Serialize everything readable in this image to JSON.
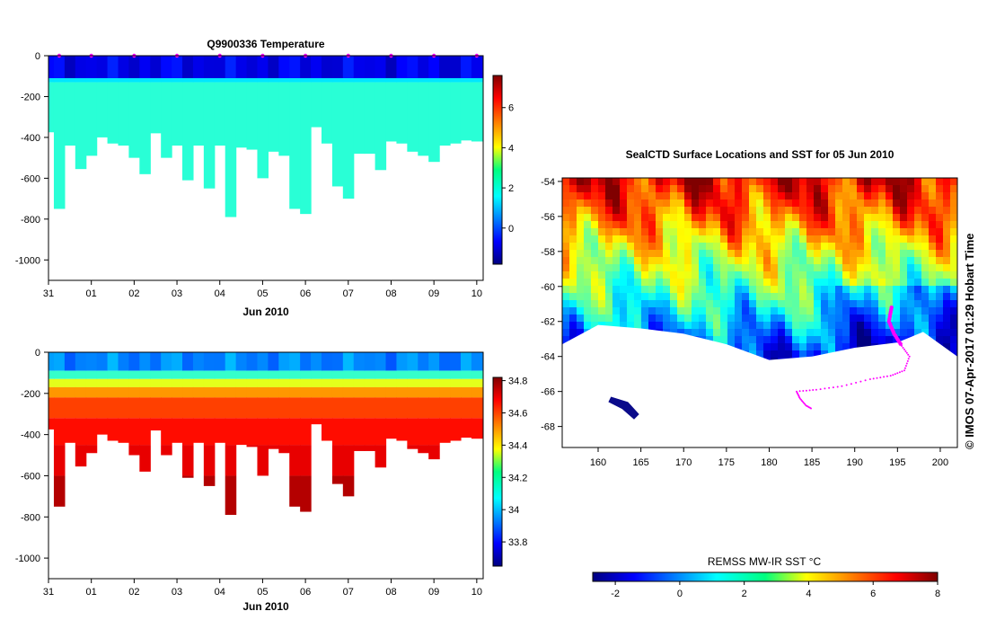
{
  "colors": {
    "white": "#ffffff",
    "track": "#ff00ff",
    "land": "#ffffff",
    "axis": "#000000"
  },
  "credit": "© IMOS 07-Apr-2017 01:29 Hobart Time",
  "chart_data": [
    {
      "type": "heatmap",
      "id": "temperature-section",
      "title": "Q9900336  Temperature",
      "xlabel": "Jun 2010",
      "x_ticks": [
        "31",
        "01",
        "02",
        "03",
        "04",
        "05",
        "06",
        "07",
        "08",
        "09",
        "10"
      ],
      "xlim": [
        0,
        10.15
      ],
      "ylim": [
        -1100,
        0
      ],
      "y_ticks": [
        0,
        -200,
        -400,
        -600,
        -800,
        -1000
      ],
      "y_tick_labels": [
        "0",
        "-200",
        "-400",
        "-600",
        "-800",
        "-1000"
      ],
      "colorbar": {
        "range": [
          -1.8,
          7.6
        ],
        "ticks": [
          0,
          2,
          4,
          6
        ],
        "tick_labels": [
          "0",
          "2",
          "4",
          "6"
        ],
        "colormap": "jet"
      },
      "surface_markers_at_day": [
        0.25,
        1,
        2,
        3,
        4,
        5,
        6,
        7,
        8,
        9,
        10
      ],
      "profile_bottom_depths": [
        375,
        750,
        440,
        555,
        490,
        400,
        430,
        440,
        500,
        580,
        380,
        500,
        440,
        610,
        440,
        650,
        440,
        790,
        450,
        460,
        600,
        470,
        490,
        750,
        775,
        350,
        430,
        640,
        700,
        480,
        480,
        560,
        420,
        430,
        470,
        490,
        520,
        440,
        430,
        415,
        420
      ],
      "layers": [
        {
          "top": 0,
          "bottom": 110,
          "value": -0.8
        },
        {
          "top": 110,
          "bottom": 130,
          "value": 1.5
        },
        {
          "top": 130,
          "bottom": 2000,
          "value": 2.1
        }
      ]
    },
    {
      "type": "heatmap",
      "id": "salinity-section",
      "xlabel": "Jun 2010",
      "x_ticks": [
        "31",
        "01",
        "02",
        "03",
        "04",
        "05",
        "06",
        "07",
        "08",
        "09",
        "10"
      ],
      "xlim": [
        0,
        10.15
      ],
      "ylim": [
        -1100,
        0
      ],
      "y_ticks": [
        0,
        -200,
        -400,
        -600,
        -800,
        -1000
      ],
      "y_tick_labels": [
        "0",
        "-200",
        "-400",
        "-600",
        "-800",
        "-1000"
      ],
      "colorbar": {
        "range": [
          33.65,
          34.82
        ],
        "ticks": [
          33.8,
          34,
          34.2,
          34.4,
          34.6,
          34.8
        ],
        "tick_labels": [
          "33.8",
          "34",
          "34.2",
          "34.4",
          "34.6",
          "34.8"
        ],
        "colormap": "jet"
      },
      "profile_bottom_depths": [
        375,
        750,
        440,
        555,
        490,
        400,
        430,
        440,
        500,
        580,
        380,
        500,
        440,
        610,
        440,
        650,
        440,
        790,
        450,
        460,
        600,
        470,
        490,
        750,
        775,
        350,
        430,
        640,
        700,
        480,
        480,
        560,
        420,
        430,
        470,
        490,
        520,
        440,
        430,
        415,
        420
      ],
      "layers": [
        {
          "top": 0,
          "bottom": 90,
          "value": 33.95
        },
        {
          "top": 90,
          "bottom": 130,
          "value": 34.15
        },
        {
          "top": 130,
          "bottom": 170,
          "value": 34.35
        },
        {
          "top": 170,
          "bottom": 220,
          "value": 34.5
        },
        {
          "top": 220,
          "bottom": 320,
          "value": 34.6
        },
        {
          "top": 320,
          "bottom": 450,
          "value": 34.66
        },
        {
          "top": 450,
          "bottom": 600,
          "value": 34.7
        },
        {
          "top": 600,
          "bottom": 2000,
          "value": 34.76
        }
      ]
    },
    {
      "type": "heatmap",
      "id": "sst-map",
      "title": "SealCTD Surface Locations and SST for 05 Jun 2010",
      "x_ticks": [
        160,
        165,
        170,
        175,
        180,
        185,
        190,
        195,
        200
      ],
      "x_tick_labels": [
        "160",
        "165",
        "170",
        "175",
        "180",
        "185",
        "190",
        "195",
        "200"
      ],
      "xlim": [
        155.8,
        202
      ],
      "y_ticks": [
        -54,
        -56,
        -58,
        -60,
        -62,
        -64,
        -66,
        -68
      ],
      "y_tick_labels": [
        "-54",
        "-56",
        "-58",
        "-60",
        "-62",
        "-64",
        "-66",
        "-68"
      ],
      "ylim": [
        -69.2,
        -53.8
      ],
      "colorbar": {
        "title": "REMSS MW-IR SST °C",
        "range": [
          -2.7,
          8
        ],
        "ticks": [
          -2,
          0,
          2,
          4,
          6,
          8
        ],
        "tick_labels": [
          "-2",
          "0",
          "2",
          "4",
          "6",
          "8"
        ],
        "colormap": "jet"
      },
      "sst_zonal_profile": [
        {
          "lat": -54,
          "value": 6.8
        },
        {
          "lat": -56,
          "value": 5.5
        },
        {
          "lat": -58,
          "value": 3.8
        },
        {
          "lat": -60,
          "value": 2.4
        },
        {
          "lat": -62,
          "value": 0.8
        },
        {
          "lat": -64,
          "value": -1.0
        }
      ],
      "ice_edge": [
        {
          "lon": 155.8,
          "lat": -63.3
        },
        {
          "lon": 160,
          "lat": -62.2
        },
        {
          "lon": 165,
          "lat": -62.4
        },
        {
          "lon": 170,
          "lat": -62.7
        },
        {
          "lon": 175,
          "lat": -63.3
        },
        {
          "lon": 180,
          "lat": -64.2
        },
        {
          "lon": 185,
          "lat": -64.0
        },
        {
          "lon": 190,
          "lat": -63.5
        },
        {
          "lon": 195,
          "lat": -63.2
        },
        {
          "lon": 198,
          "lat": -62.6
        },
        {
          "lon": 202,
          "lat": -64.0
        }
      ],
      "track": [
        {
          "lon": 194.3,
          "lat": -61.2
        },
        {
          "lon": 194.0,
          "lat": -62.0
        },
        {
          "lon": 194.6,
          "lat": -62.7
        },
        {
          "lon": 195.5,
          "lat": -63.4
        },
        {
          "lon": 196.4,
          "lat": -64.0
        },
        {
          "lon": 195.8,
          "lat": -64.8
        },
        {
          "lon": 194.2,
          "lat": -65.1
        },
        {
          "lon": 191.8,
          "lat": -65.3
        },
        {
          "lon": 188.5,
          "lat": -65.7
        },
        {
          "lon": 185.5,
          "lat": -65.9
        },
        {
          "lon": 183.2,
          "lat": -66.0
        },
        {
          "lon": 183.6,
          "lat": -66.4
        },
        {
          "lon": 184.3,
          "lat": -66.8
        },
        {
          "lon": 185.0,
          "lat": -67.0
        }
      ]
    }
  ]
}
